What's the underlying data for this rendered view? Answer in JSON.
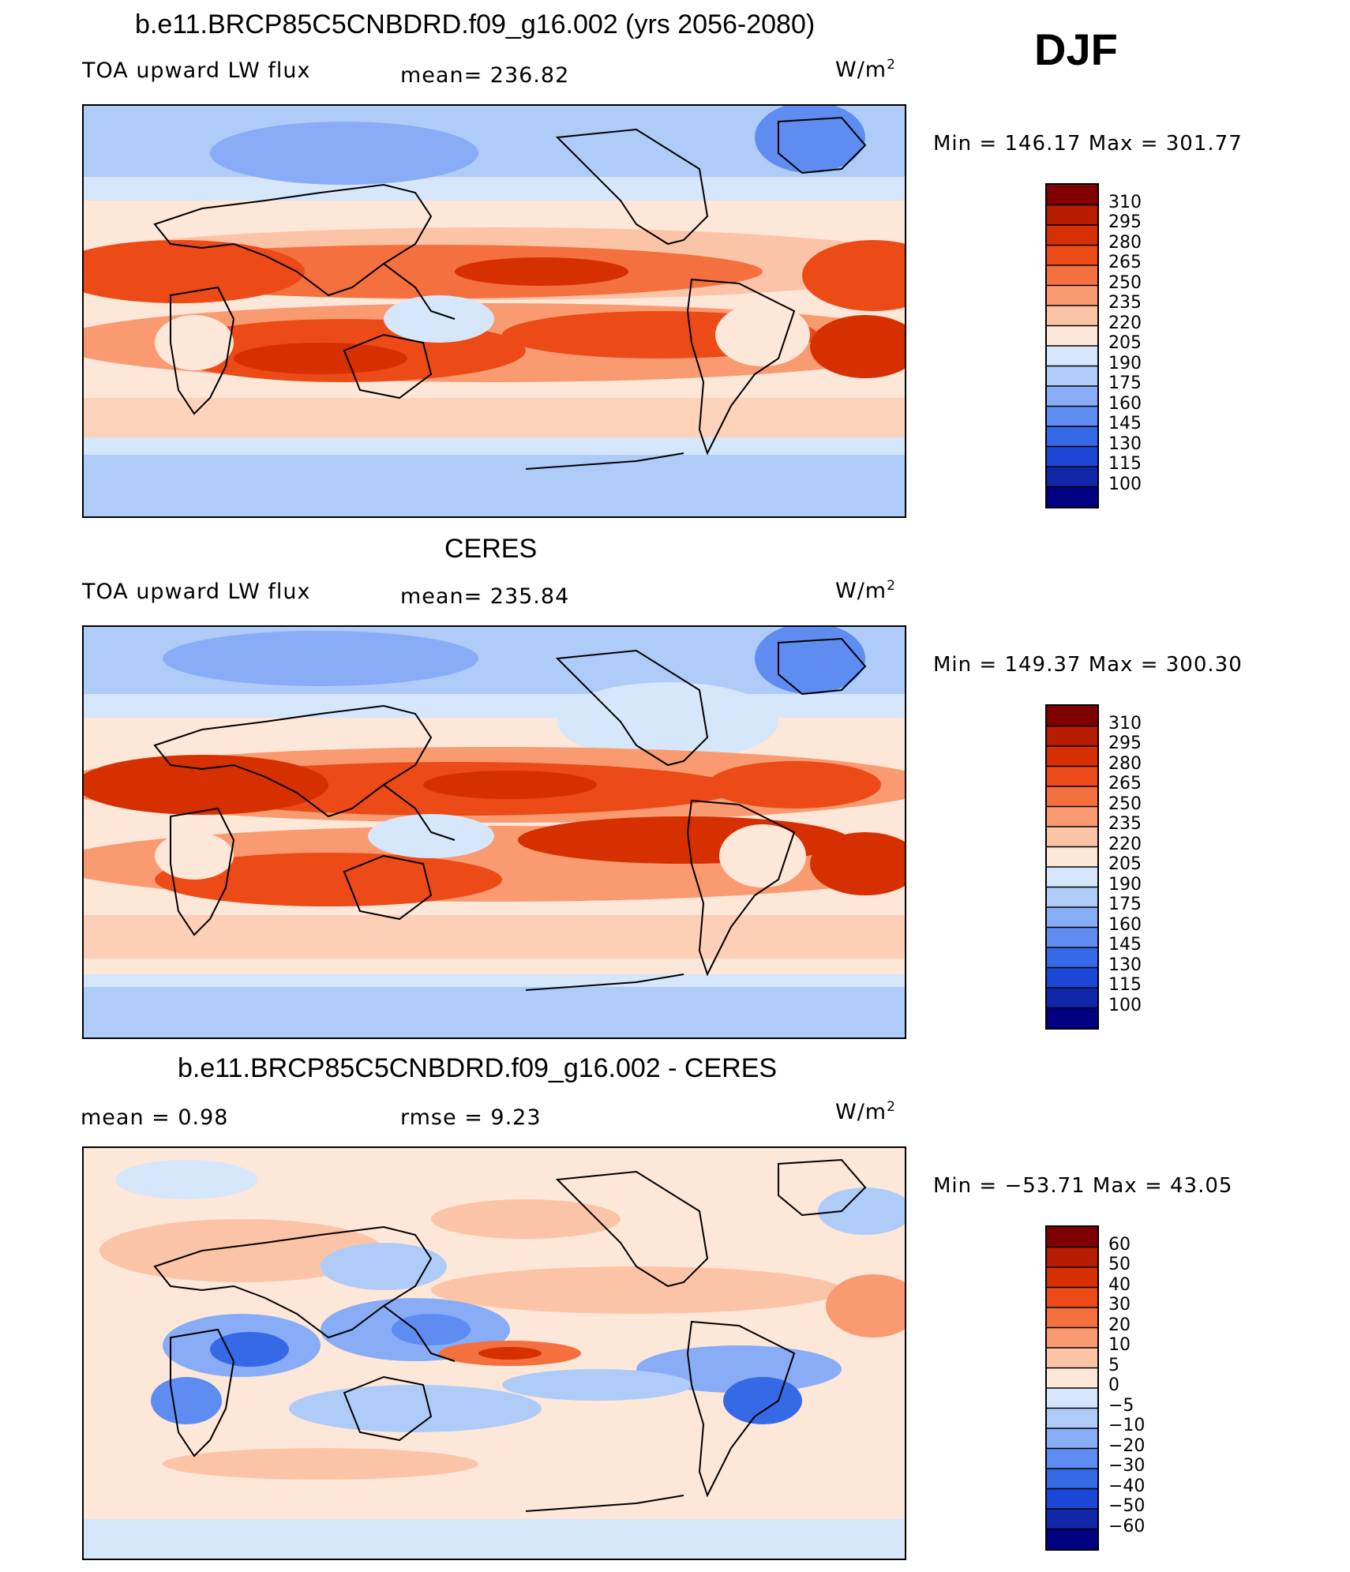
{
  "season": "DJF",
  "units_base": "W/m",
  "units_exp": "2",
  "panels": [
    {
      "title": "b.e11.BRCP85C5CNBDRD.f09_g16.002 (yrs 2056-2080)",
      "left_label": "TOA upward LW flux",
      "mid_label": "mean=  236.82",
      "minmax": "Min  =  146.17  Max  =  301.77"
    },
    {
      "title": "CERES",
      "left_label": "TOA upward LW flux",
      "mid_label": "mean=  235.84",
      "minmax": "Min  =  149.37  Max  =  300.30"
    },
    {
      "title": "b.e11.BRCP85C5CNBDRD.f09_g16.002 - CERES",
      "left_label": "mean  =     0.98",
      "mid_label": "rmse  =     9.23",
      "minmax": "Min  =  −53.71  Max  =    43.05"
    }
  ],
  "chart_data": [
    {
      "type": "heatmap",
      "title": "b.e11.BRCP85C5CNBDRD.f09_g16.002 (yrs 2056-2080)",
      "variable": "TOA upward LW flux",
      "units": "W/m2",
      "mean": 236.82,
      "min": 146.17,
      "max": 301.77,
      "colorbar_levels": [
        310,
        295,
        280,
        265,
        250,
        235,
        220,
        205,
        190,
        175,
        160,
        145,
        130,
        115,
        100
      ],
      "colors": [
        "#7f0000",
        "#b71c00",
        "#d63000",
        "#ec4a16",
        "#f4703f",
        "#f99a70",
        "#fcc4a6",
        "#fde7d9",
        "#d6e6fb",
        "#afcbf8",
        "#88acf5",
        "#5e8cf0",
        "#3569e6",
        "#1c46d6",
        "#0f27a8",
        "#000080"
      ]
    },
    {
      "type": "heatmap",
      "title": "CERES",
      "variable": "TOA upward LW flux",
      "units": "W/m2",
      "mean": 235.84,
      "min": 149.37,
      "max": 300.3,
      "colorbar_levels": [
        310,
        295,
        280,
        265,
        250,
        235,
        220,
        205,
        190,
        175,
        160,
        145,
        130,
        115,
        100
      ],
      "colors": [
        "#7f0000",
        "#b71c00",
        "#d63000",
        "#ec4a16",
        "#f4703f",
        "#f99a70",
        "#fcc4a6",
        "#fde7d9",
        "#d6e6fb",
        "#afcbf8",
        "#88acf5",
        "#5e8cf0",
        "#3569e6",
        "#1c46d6",
        "#0f27a8",
        "#000080"
      ]
    },
    {
      "type": "heatmap",
      "title": "b.e11.BRCP85C5CNBDRD.f09_g16.002 - CERES",
      "units": "W/m2",
      "mean": 0.98,
      "rmse": 9.23,
      "min": -53.71,
      "max": 43.05,
      "colorbar_levels": [
        "60",
        "50",
        "40",
        "30",
        "20",
        "10",
        "5",
        "0",
        "−5",
        "−10",
        "−20",
        "−30",
        "−40",
        "−50",
        "−60"
      ],
      "colors": [
        "#7f0000",
        "#b71c00",
        "#d63000",
        "#ec4a16",
        "#f4703f",
        "#f99a70",
        "#fcc4a6",
        "#fde7d9",
        "#d6e6fb",
        "#afcbf8",
        "#88acf5",
        "#5e8cf0",
        "#3569e6",
        "#1c46d6",
        "#0f27a8",
        "#000080"
      ]
    }
  ]
}
